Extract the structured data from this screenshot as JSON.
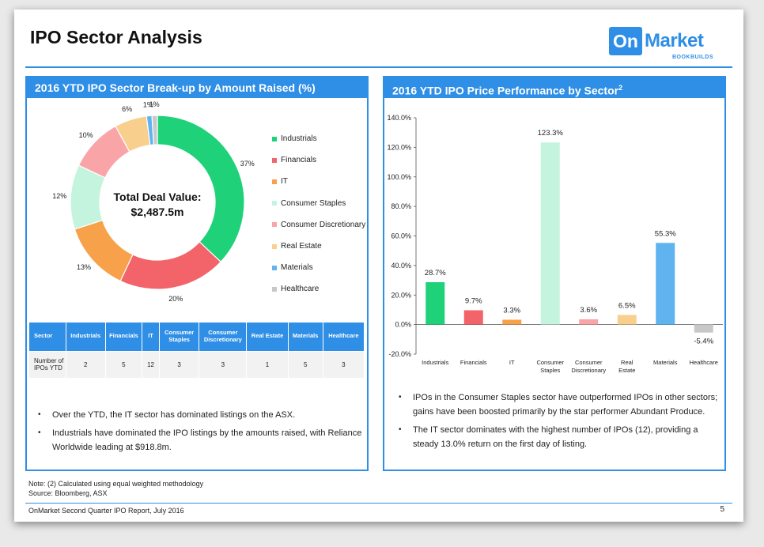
{
  "page": {
    "title": "IPO Sector Analysis",
    "logo_main_on": "On",
    "logo_main_market": "Market",
    "logo_sub": "BOOKBUILDS"
  },
  "left_panel": {
    "heading": "2016 YTD IPO Sector Break-up by Amount Raised (%)",
    "center_label_line1": "Total Deal Value:",
    "center_label_line2": "$2,487.5m",
    "bullets": [
      "Over the YTD, the IT sector has dominated listings on the ASX.",
      "Industrials have dominated the IPO listings by the amounts raised, with Reliance Worldwide leading at $918.8m."
    ]
  },
  "right_panel": {
    "heading": "2016 YTD IPO Price Performance by Sector",
    "heading_sup": "2",
    "bullets": [
      "IPOs in the Consumer Staples sector have outperformed IPOs in other sectors; gains have been boosted primarily by the star performer Abundant Produce.",
      "The IT sector dominates with the highest number of IPOs (12), providing a steady 13.0% return on the first day of listing."
    ]
  },
  "table": {
    "headers": [
      "Sector",
      "Industrials",
      "Financials",
      "IT",
      "Consumer Staples",
      "Consumer Discretionary",
      "Real Estate",
      "Materials",
      "Healthcare"
    ],
    "row_label": "Number of IPOs YTD",
    "values": [
      "2",
      "5",
      "12",
      "3",
      "3",
      "1",
      "5",
      "3"
    ]
  },
  "chart_data": [
    {
      "type": "pie",
      "title": "2016 YTD IPO Sector Break-up by Amount Raised (%)",
      "donut": true,
      "categories": [
        "Industrials",
        "Financials",
        "IT",
        "Consumer Staples",
        "Consumer Discretionary",
        "Real Estate",
        "Materials",
        "Healthcare"
      ],
      "values": [
        37,
        20,
        13,
        12,
        10,
        6,
        1,
        1
      ],
      "labels": [
        "37%",
        "20%",
        "13%",
        "12%",
        "10%",
        "6%",
        "1%",
        "1%"
      ],
      "colors": [
        "#1fd27a",
        "#f2636a",
        "#f7a14a",
        "#c4f4de",
        "#f9a5a8",
        "#f9cf8e",
        "#5fb4f0",
        "#c8c8c8"
      ],
      "legend_position": "right"
    },
    {
      "type": "bar",
      "title": "2016 YTD IPO Price Performance by Sector",
      "categories": [
        "Industrials",
        "Financials",
        "IT",
        "Consumer Staples",
        "Consumer Discretionary",
        "Real Estate",
        "Materials",
        "Healthcare"
      ],
      "values": [
        28.7,
        9.7,
        3.3,
        123.3,
        3.6,
        6.5,
        55.3,
        -5.4
      ],
      "data_labels": [
        "28.7%",
        "9.7%",
        "3.3%",
        "123.3%",
        "3.6%",
        "6.5%",
        "55.3%",
        "-5.4%"
      ],
      "colors": [
        "#1fd27a",
        "#f2636a",
        "#f7a14a",
        "#c4f4de",
        "#f9a5a8",
        "#f9cf8e",
        "#5fb4f0",
        "#c8c8c8"
      ],
      "ylim": [
        -20,
        140
      ],
      "yticks": [
        -20,
        0,
        20,
        40,
        60,
        80,
        100,
        120,
        140
      ],
      "ytick_labels": [
        "-20.0%",
        "0.0%",
        "20.0%",
        "40.0%",
        "60.0%",
        "80.0%",
        "100.0%",
        "120.0%",
        "140.0%"
      ],
      "grid": false
    }
  ],
  "footer": {
    "note_line1": "Note: (2) Calculated using equal weighted methodology",
    "note_line2": "Source: Bloomberg, ASX",
    "report": "OnMarket Second Quarter IPO Report, July 2016",
    "page_number": "5"
  }
}
